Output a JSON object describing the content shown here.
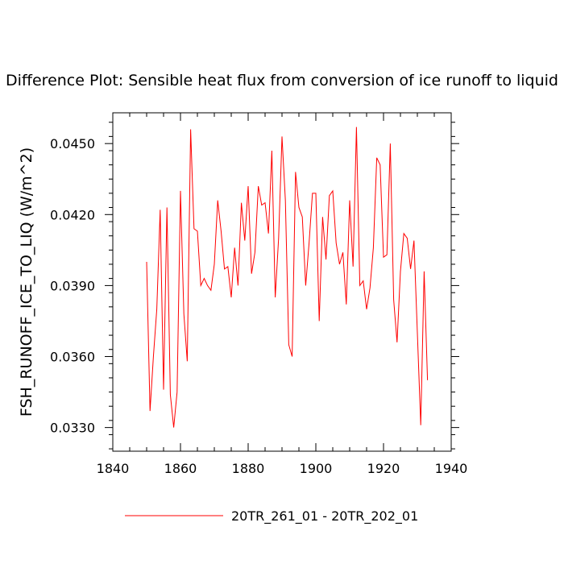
{
  "chart_data": {
    "type": "line",
    "title": "Difference Plot: Sensible heat flux from conversion of ice runoff to liquid",
    "ylabel": "FSH_RUNOFF_ICE_TO_LIQ  (W/m^2)",
    "xlabel": "",
    "xlim": [
      1840,
      1940
    ],
    "ylim": [
      0.032,
      0.0463
    ],
    "xticks": [
      1840,
      1860,
      1880,
      1900,
      1920,
      1940
    ],
    "xtick_labels": [
      "1840",
      "1860",
      "1880",
      "1900",
      "1920",
      "1940"
    ],
    "yticks": [
      0.033,
      0.036,
      0.039,
      0.042,
      0.045
    ],
    "ytick_labels": [
      "0.0330",
      "0.0360",
      "0.0390",
      "0.0420",
      "0.0450"
    ],
    "grid": false,
    "legend_position": "bottom-center",
    "series": [
      {
        "name": "20TR_261_01 - 20TR_202_01",
        "color": "#ff0000",
        "x": [
          1850,
          1851,
          1852,
          1853,
          1854,
          1855,
          1856,
          1857,
          1858,
          1859,
          1860,
          1861,
          1862,
          1863,
          1864,
          1865,
          1866,
          1867,
          1868,
          1869,
          1870,
          1871,
          1872,
          1873,
          1874,
          1875,
          1876,
          1877,
          1878,
          1879,
          1880,
          1881,
          1882,
          1883,
          1884,
          1885,
          1886,
          1887,
          1888,
          1889,
          1890,
          1891,
          1892,
          1893,
          1894,
          1895,
          1896,
          1897,
          1898,
          1899,
          1900,
          1901,
          1902,
          1903,
          1904,
          1905,
          1906,
          1907,
          1908,
          1909,
          1910,
          1911,
          1912,
          1913,
          1914,
          1915,
          1916,
          1917,
          1918,
          1919,
          1920,
          1921,
          1922,
          1923,
          1924,
          1925,
          1926,
          1927,
          1928,
          1929,
          1930,
          1931,
          1932,
          1933
        ],
        "y": [
          0.04,
          0.0337,
          0.036,
          0.038,
          0.0422,
          0.0346,
          0.0423,
          0.0344,
          0.033,
          0.0345,
          0.043,
          0.0378,
          0.0358,
          0.0456,
          0.0414,
          0.0413,
          0.039,
          0.0393,
          0.039,
          0.0388,
          0.0399,
          0.0426,
          0.0413,
          0.0397,
          0.0398,
          0.0385,
          0.0406,
          0.039,
          0.0425,
          0.0409,
          0.0432,
          0.0395,
          0.0404,
          0.0432,
          0.0424,
          0.0425,
          0.0412,
          0.0447,
          0.0385,
          0.041,
          0.0453,
          0.0426,
          0.0365,
          0.036,
          0.0438,
          0.0423,
          0.0419,
          0.039,
          0.0408,
          0.0429,
          0.0429,
          0.0375,
          0.0419,
          0.0401,
          0.0428,
          0.043,
          0.0408,
          0.0399,
          0.0404,
          0.0382,
          0.0426,
          0.0398,
          0.0457,
          0.039,
          0.0392,
          0.038,
          0.0389,
          0.0406,
          0.0444,
          0.0441,
          0.0402,
          0.0403,
          0.045,
          0.0384,
          0.0366,
          0.0396,
          0.0412,
          0.041,
          0.0397,
          0.0409,
          0.037,
          0.0331,
          0.0396,
          0.035
        ]
      }
    ]
  }
}
